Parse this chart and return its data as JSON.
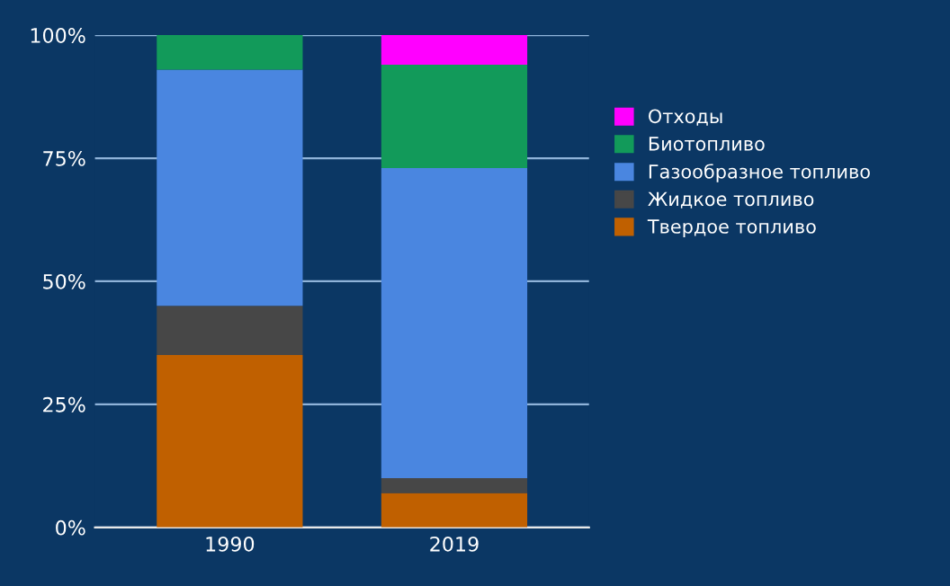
{
  "chart_data": {
    "type": "bar",
    "stacked": true,
    "categories": [
      "1990",
      "2019"
    ],
    "series": [
      {
        "name": "Твердое топливо",
        "color": "#c06000",
        "values": [
          35,
          7
        ]
      },
      {
        "name": "Жидкое топливо",
        "color": "#474747",
        "values": [
          10,
          3
        ]
      },
      {
        "name": "Газообразное топливо",
        "color": "#4a86e0",
        "values": [
          48,
          63
        ]
      },
      {
        "name": "Биотопливо",
        "color": "#129a5a",
        "values": [
          7,
          21
        ]
      },
      {
        "name": "Отходы",
        "color": "#ff00ff",
        "values": [
          0,
          6
        ]
      }
    ],
    "ylim": [
      0,
      100
    ],
    "yticks": [
      {
        "value": 0,
        "label": "0%"
      },
      {
        "value": 25,
        "label": "25%"
      },
      {
        "value": 50,
        "label": "50%"
      },
      {
        "value": 75,
        "label": "75%"
      },
      {
        "value": 100,
        "label": "100%"
      }
    ],
    "grid": "y",
    "legend": "right"
  }
}
